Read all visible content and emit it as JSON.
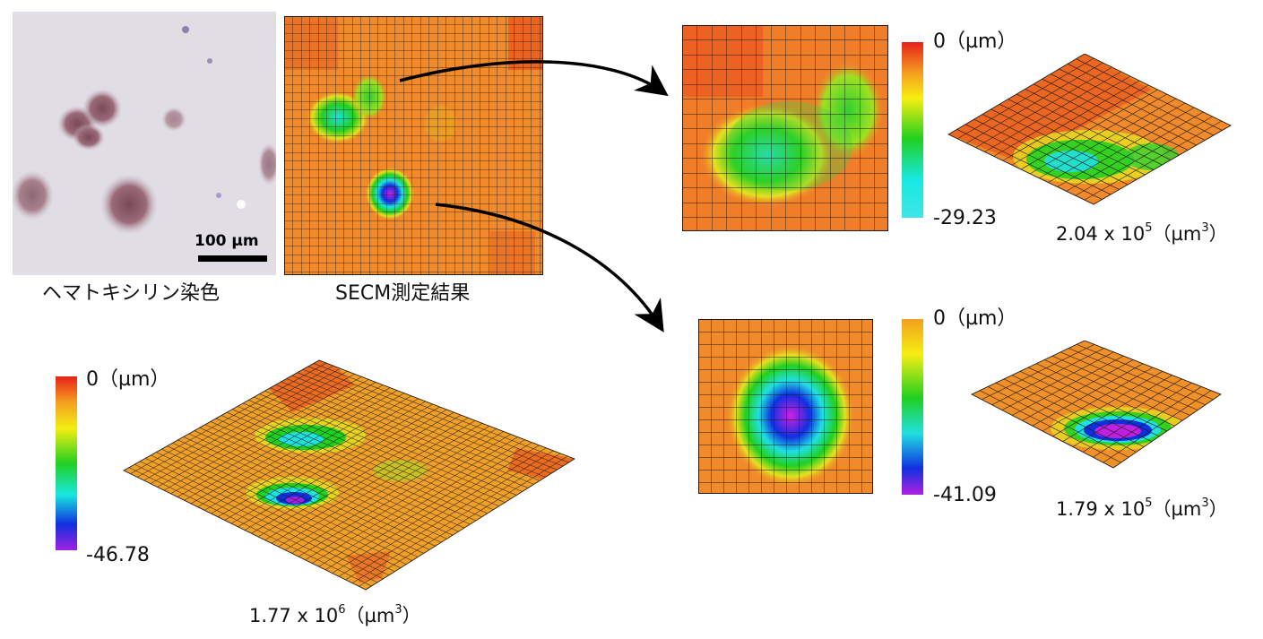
{
  "stain_panel": {
    "scale_bar": "100 µm",
    "caption": "ヘマトキシリン染色"
  },
  "secm_panel": {
    "caption": "SECM測定結果"
  },
  "top_detail": {
    "scale_max": "0（µm）",
    "scale_min": "-29.23",
    "volume_mantissa": "2.04 x 10",
    "volume_exp": "5",
    "volume_unit": "（µm",
    "volume_unit_exp": "3",
    "volume_close": "）"
  },
  "bottom_detail": {
    "scale_max": "0（µm）",
    "scale_min": "-41.09",
    "volume_mantissa": "1.79 x 10",
    "volume_exp": "5",
    "volume_unit": "（µm",
    "volume_unit_exp": "3",
    "volume_close": "）"
  },
  "overall_3d": {
    "scale_max": "0（µm）",
    "scale_min": "-46.78",
    "volume_mantissa": "1.77 x 10",
    "volume_exp": "6",
    "volume_unit": "（µm",
    "volume_unit_exp": "3",
    "volume_close": "）"
  },
  "colors": {
    "surface_orange": "#f08a2a",
    "grid_line": "#1a1a1a",
    "arrow": "#000000"
  }
}
